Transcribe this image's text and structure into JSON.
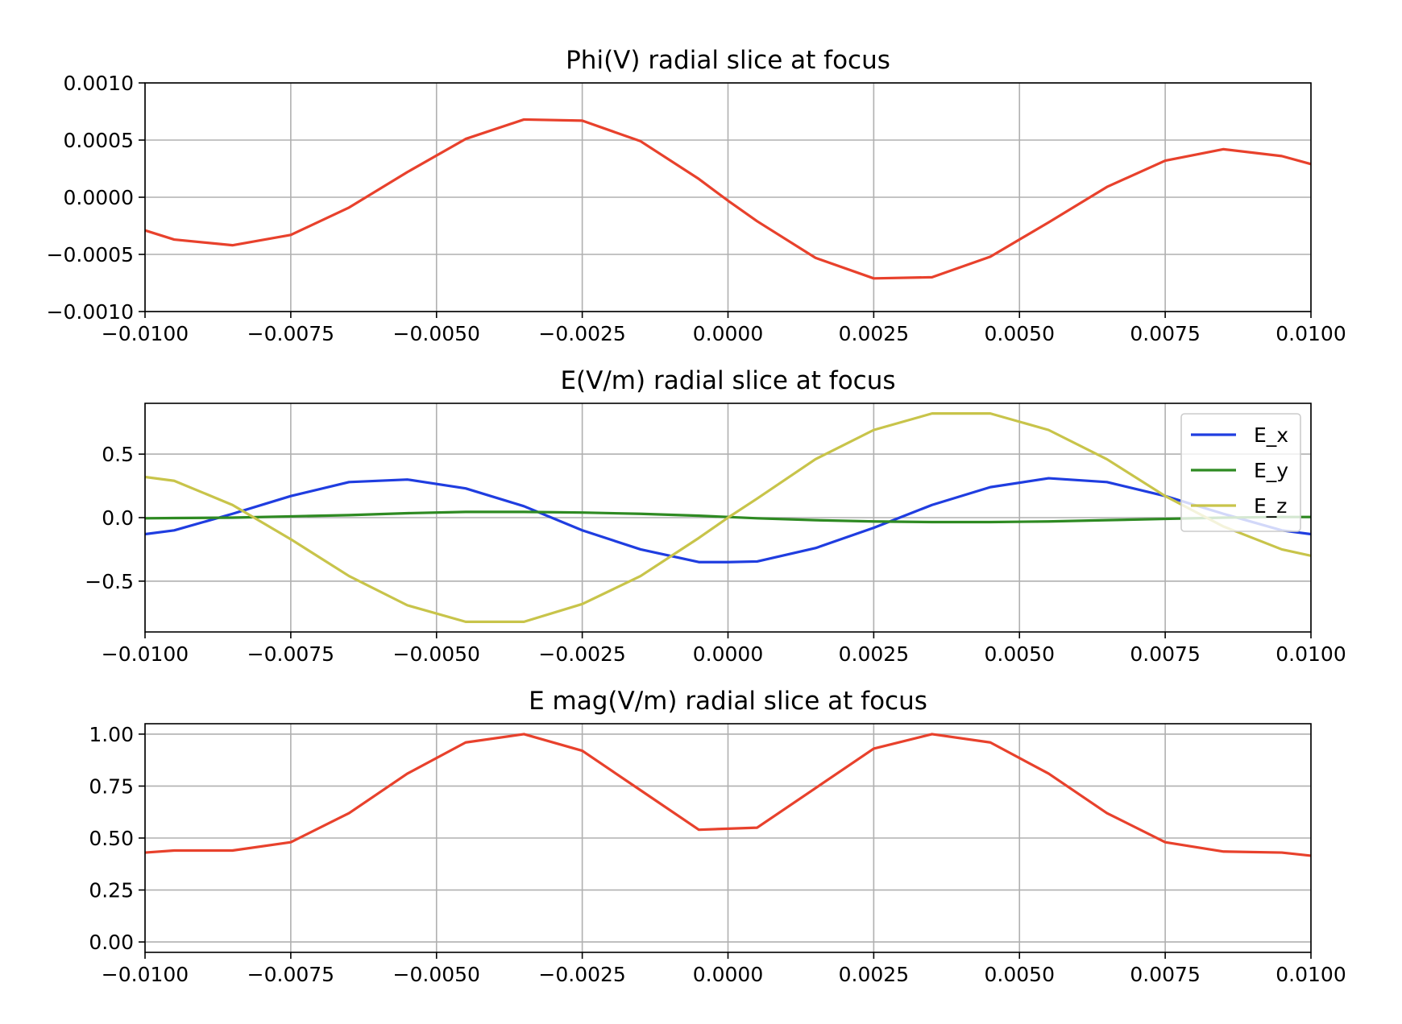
{
  "chart_data": [
    {
      "type": "line",
      "title": "Phi(V) radial slice at focus",
      "xlabel": "",
      "ylabel": "",
      "xlim": [
        -0.01,
        0.01
      ],
      "ylim": [
        -0.001,
        0.001
      ],
      "grid": true,
      "xticks": [
        -0.01,
        -0.0075,
        -0.005,
        -0.0025,
        0.0,
        0.0025,
        0.005,
        0.0075,
        0.01
      ],
      "xtick_labels": [
        "−0.0100",
        "−0.0075",
        "−0.0050",
        "−0.0025",
        "0.0000",
        "0.0025",
        "0.0050",
        "0.0075",
        "0.0100"
      ],
      "yticks": [
        -0.001,
        -0.0005,
        0.0,
        0.0005,
        0.001
      ],
      "ytick_labels": [
        "−0.0010",
        "−0.0005",
        "0.0000",
        "0.0005",
        "0.0010"
      ],
      "x": [
        -0.01,
        -0.0095,
        -0.0085,
        -0.0075,
        -0.0065,
        -0.0055,
        -0.0045,
        -0.0035,
        -0.0025,
        -0.0015,
        -0.0005,
        0.0,
        0.0005,
        0.0015,
        0.0025,
        0.0035,
        0.0045,
        0.0055,
        0.0065,
        0.0075,
        0.0085,
        0.0095,
        0.01
      ],
      "series": [
        {
          "color": "#e8412c",
          "values": [
            -0.00029,
            -0.00037,
            -0.00042,
            -0.00033,
            -9e-05,
            0.00022,
            0.00051,
            0.00068,
            0.00067,
            0.00049,
            0.00016,
            -3e-05,
            -0.00021,
            -0.00053,
            -0.00071,
            -0.0007,
            -0.00052,
            -0.00022,
            9e-05,
            0.00032,
            0.00042,
            0.00036,
            0.00029
          ]
        }
      ]
    },
    {
      "type": "line",
      "title": "E(V/m) radial slice at focus",
      "xlabel": "",
      "ylabel": "",
      "xlim": [
        -0.01,
        0.01
      ],
      "ylim": [
        -0.9,
        0.9
      ],
      "grid": true,
      "legend_position": "upper right",
      "xticks": [
        -0.01,
        -0.0075,
        -0.005,
        -0.0025,
        0.0,
        0.0025,
        0.005,
        0.0075,
        0.01
      ],
      "xtick_labels": [
        "−0.0100",
        "−0.0075",
        "−0.0050",
        "−0.0025",
        "0.0000",
        "0.0025",
        "0.0050",
        "0.0075",
        "0.0100"
      ],
      "yticks": [
        -0.5,
        0.0,
        0.5
      ],
      "ytick_labels": [
        "−0.5",
        "0.0",
        "0.5"
      ],
      "x": [
        -0.01,
        -0.0095,
        -0.0085,
        -0.0075,
        -0.0065,
        -0.0055,
        -0.0045,
        -0.0035,
        -0.0025,
        -0.0015,
        -0.0005,
        0.0,
        0.0005,
        0.0015,
        0.0025,
        0.0035,
        0.0045,
        0.0055,
        0.0065,
        0.0075,
        0.0085,
        0.0095,
        0.01
      ],
      "series": [
        {
          "name": "E_x",
          "color": "#1f3de0",
          "values": [
            -0.13,
            -0.1,
            0.03,
            0.17,
            0.28,
            0.3,
            0.23,
            0.09,
            -0.1,
            -0.25,
            -0.35,
            -0.35,
            -0.345,
            -0.24,
            -0.08,
            0.1,
            0.24,
            0.31,
            0.28,
            0.17,
            0.03,
            -0.1,
            -0.13
          ]
        },
        {
          "name": "E_y",
          "color": "#2e8a22",
          "values": [
            -0.005,
            -0.003,
            0.0,
            0.01,
            0.02,
            0.035,
            0.045,
            0.045,
            0.04,
            0.03,
            0.015,
            0.005,
            -0.005,
            -0.02,
            -0.03,
            -0.035,
            -0.035,
            -0.03,
            -0.02,
            -0.01,
            0.0,
            0.005,
            0.005
          ]
        },
        {
          "name": "E_z",
          "color": "#c8c44a",
          "values": [
            0.32,
            0.29,
            0.1,
            -0.17,
            -0.46,
            -0.69,
            -0.82,
            -0.82,
            -0.68,
            -0.46,
            -0.16,
            0.0,
            0.15,
            0.46,
            0.69,
            0.82,
            0.82,
            0.69,
            0.46,
            0.17,
            -0.07,
            -0.25,
            -0.3
          ]
        }
      ]
    },
    {
      "type": "line",
      "title": "E mag(V/m) radial slice at focus",
      "xlabel": "",
      "ylabel": "",
      "xlim": [
        -0.01,
        0.01
      ],
      "ylim": [
        -0.05,
        1.05
      ],
      "grid": true,
      "xticks": [
        -0.01,
        -0.0075,
        -0.005,
        -0.0025,
        0.0,
        0.0025,
        0.005,
        0.0075,
        0.01
      ],
      "xtick_labels": [
        "−0.0100",
        "−0.0075",
        "−0.0050",
        "−0.0025",
        "0.0000",
        "0.0025",
        "0.0050",
        "0.0075",
        "0.0100"
      ],
      "yticks": [
        0.0,
        0.25,
        0.5,
        0.75,
        1.0
      ],
      "ytick_labels": [
        "0.00",
        "0.25",
        "0.50",
        "0.75",
        "1.00"
      ],
      "x": [
        -0.01,
        -0.0095,
        -0.0085,
        -0.0075,
        -0.0065,
        -0.0055,
        -0.0045,
        -0.0035,
        -0.0025,
        -0.0015,
        -0.0005,
        0.0005,
        0.0015,
        0.0025,
        0.0035,
        0.0045,
        0.0055,
        0.0065,
        0.0075,
        0.0085,
        0.0095,
        0.01
      ],
      "series": [
        {
          "color": "#e8412c",
          "values": [
            0.43,
            0.44,
            0.44,
            0.48,
            0.62,
            0.81,
            0.96,
            1.0,
            0.92,
            0.73,
            0.54,
            0.55,
            0.74,
            0.93,
            1.0,
            0.96,
            0.81,
            0.62,
            0.48,
            0.435,
            0.43,
            0.415
          ]
        }
      ]
    }
  ]
}
